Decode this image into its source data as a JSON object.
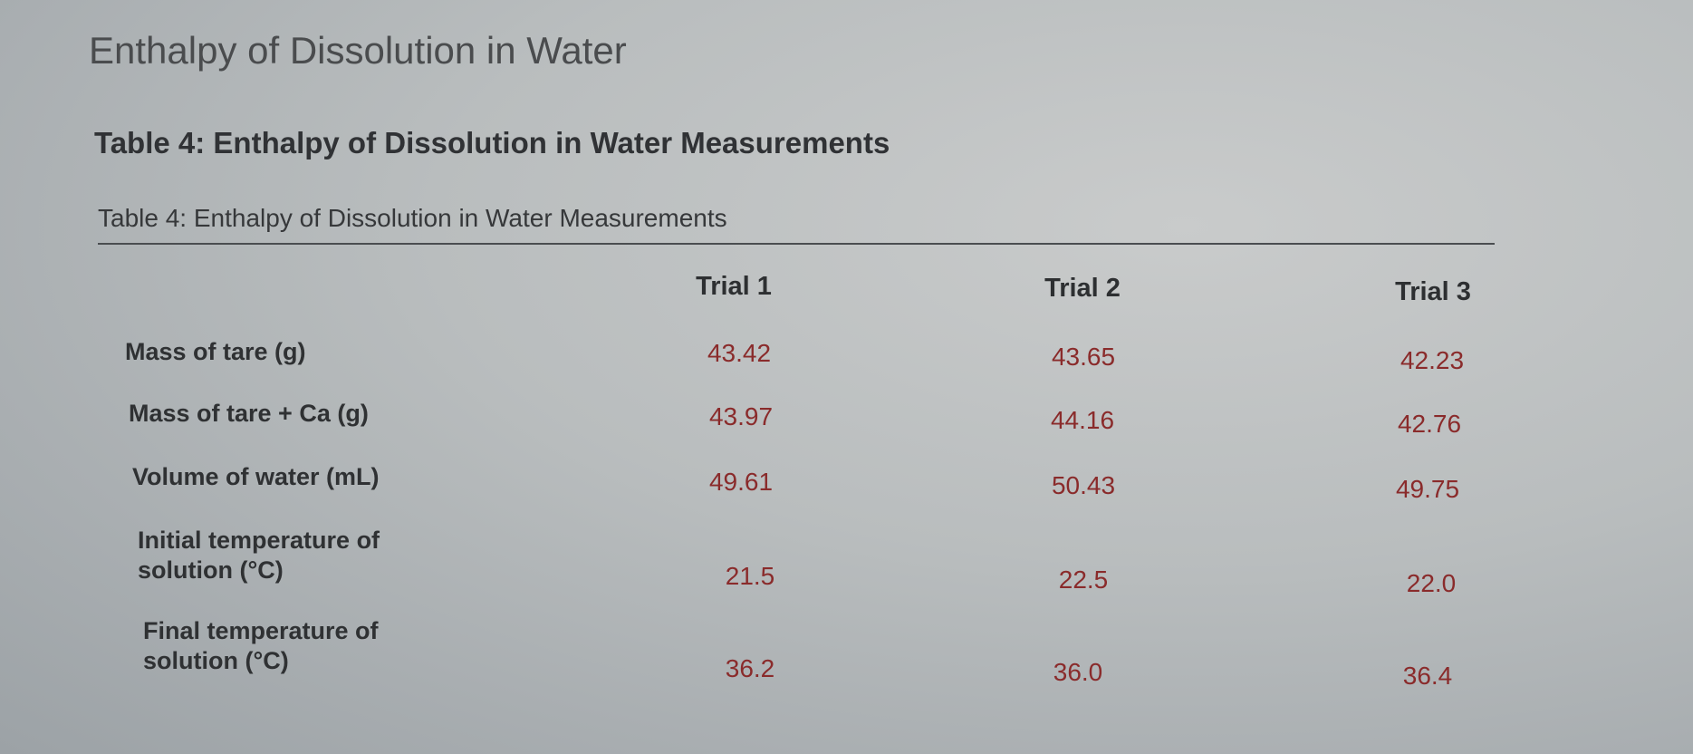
{
  "page": {
    "heading": "Enthalpy of Dissolution in Water"
  },
  "section": {
    "title": "Table 4: Enthalpy of Dissolution in Water Measurements"
  },
  "table": {
    "caption": "Table 4: Enthalpy of Dissolution in Water Measurements",
    "columns": [
      "Trial 1",
      "Trial 2",
      "Trial 3"
    ],
    "rows": [
      {
        "label": "Mass of tare (g)",
        "values": [
          "43.42",
          "43.65",
          "42.23"
        ]
      },
      {
        "label": "Mass of tare + Ca (g)",
        "values": [
          "43.97",
          "44.16",
          "42.76"
        ]
      },
      {
        "label": "Volume of water (mL)",
        "values": [
          "49.61",
          "50.43",
          "49.75"
        ]
      },
      {
        "label": "Initial temperature of solution (°C)",
        "values": [
          "21.5",
          "22.5",
          "22.0"
        ]
      },
      {
        "label": "Final temperature of solution (°C)",
        "values": [
          "36.2",
          "36.0",
          "36.4"
        ]
      }
    ]
  }
}
